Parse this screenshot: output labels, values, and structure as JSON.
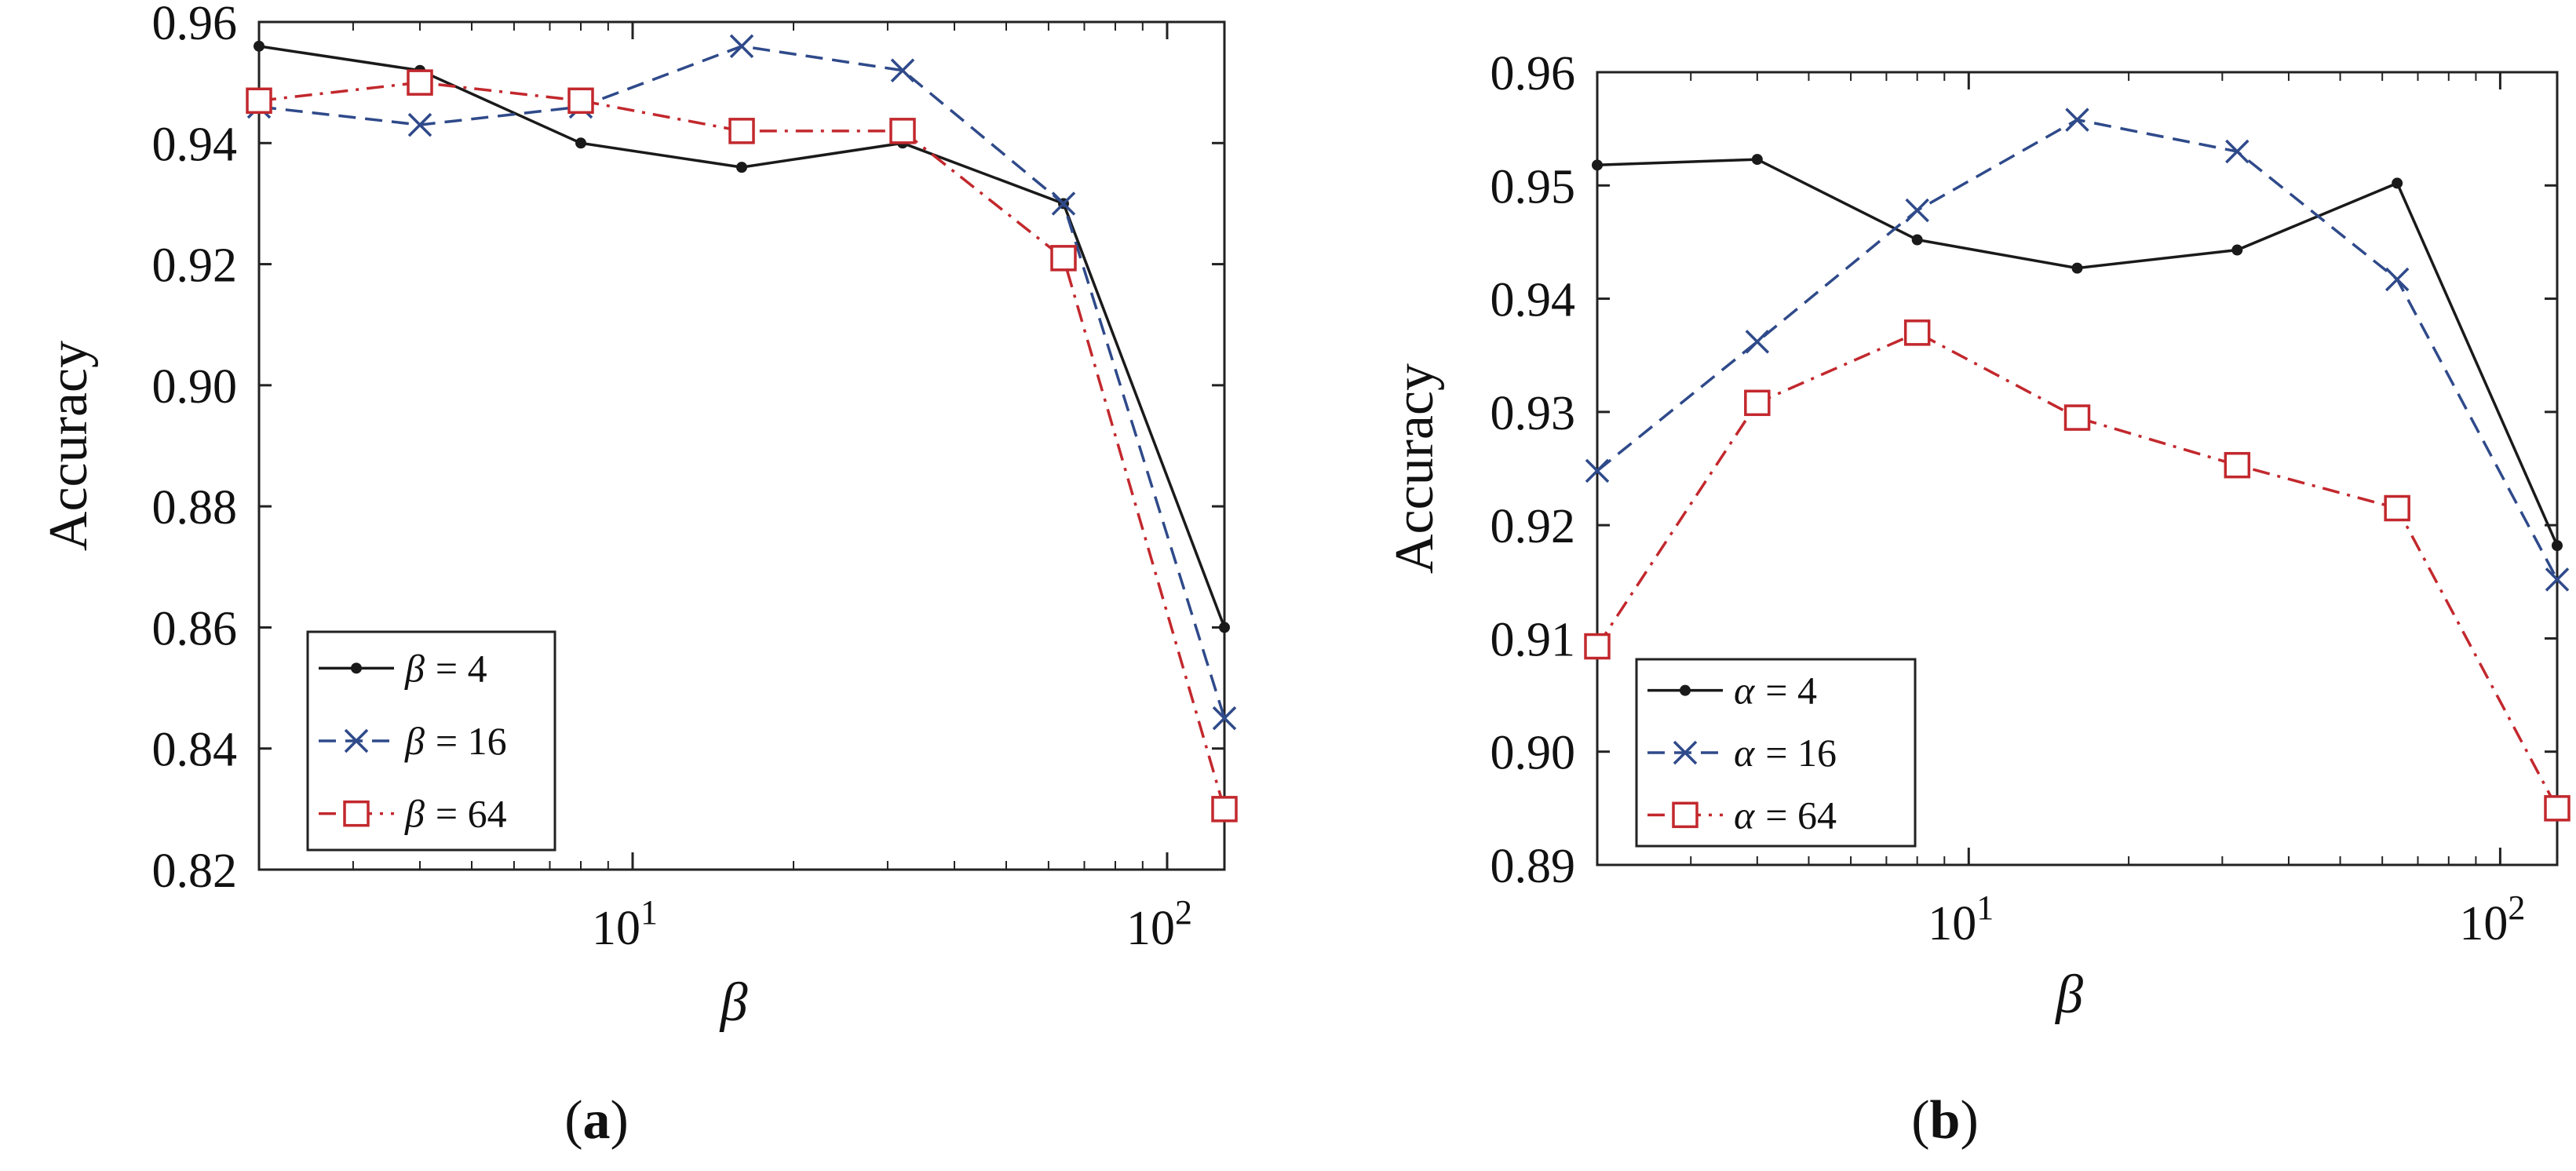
{
  "chart_data": [
    {
      "type": "line",
      "panel": "a",
      "caption_letter": "a",
      "xlabel": "β",
      "ylabel": "Accuracy",
      "xscale": "log",
      "xlim": [
        2,
        128
      ],
      "ylim": [
        0.82,
        0.96
      ],
      "yticks": [
        0.82,
        0.84,
        0.86,
        0.88,
        0.9,
        0.92,
        0.94,
        0.96
      ],
      "ytick_labels": [
        "0.82",
        "0.84",
        "0.86",
        "0.88",
        "0.90",
        "0.92",
        "0.94",
        "0.96"
      ],
      "xticks": [
        {
          "value": 10,
          "base": "10",
          "exp": "1"
        },
        {
          "value": 100,
          "base": "10",
          "exp": "2"
        }
      ],
      "x": [
        2,
        4,
        8,
        16,
        32,
        64,
        128
      ],
      "legend_position": "bottom-left",
      "series": [
        {
          "symbol": "β",
          "legend_value": "= 4",
          "color": "#1a1a1a",
          "dash": "solid",
          "marker": "dot",
          "values": [
            0.956,
            0.952,
            0.94,
            0.936,
            0.94,
            0.93,
            0.86
          ]
        },
        {
          "symbol": "β",
          "legend_value": "= 16",
          "color": "#2f4a8a",
          "dash": "dashed",
          "marker": "x",
          "values": [
            0.946,
            0.943,
            0.946,
            0.956,
            0.952,
            0.93,
            0.845
          ]
        },
        {
          "symbol": "β",
          "legend_value": "= 64",
          "color": "#c2282d",
          "dash": "dashdot",
          "marker": "square",
          "values": [
            0.947,
            0.95,
            0.947,
            0.942,
            0.942,
            0.921,
            0.83
          ]
        }
      ]
    },
    {
      "type": "line",
      "panel": "b",
      "caption_letter": "b",
      "xlabel": "β",
      "ylabel": "Accuracy",
      "xscale": "log",
      "xlim": [
        2,
        128
      ],
      "ylim": [
        0.89,
        0.96
      ],
      "yticks": [
        0.89,
        0.9,
        0.91,
        0.92,
        0.93,
        0.94,
        0.95,
        0.96
      ],
      "ytick_labels": [
        "0.89",
        "0.90",
        "0.91",
        "0.92",
        "0.93",
        "0.94",
        "0.95",
        "0.96"
      ],
      "xticks": [
        {
          "value": 10,
          "base": "10",
          "exp": "1"
        },
        {
          "value": 100,
          "base": "10",
          "exp": "2"
        }
      ],
      "x": [
        2,
        4,
        8,
        16,
        32,
        64,
        128
      ],
      "legend_position": "bottom-left",
      "series": [
        {
          "symbol": "α",
          "legend_value": "= 4",
          "color": "#1a1a1a",
          "dash": "solid",
          "marker": "dot",
          "values": [
            0.9518,
            0.9523,
            0.9452,
            0.9427,
            0.9443,
            0.9502,
            0.9182
          ]
        },
        {
          "symbol": "α",
          "legend_value": "= 16",
          "color": "#2f4a8a",
          "dash": "dashed",
          "marker": "x",
          "values": [
            0.9248,
            0.9362,
            0.9478,
            0.9558,
            0.953,
            0.9417,
            0.9152
          ]
        },
        {
          "symbol": "α",
          "legend_value": "= 64",
          "color": "#c2282d",
          "dash": "dashdot",
          "marker": "square",
          "values": [
            0.9093,
            0.9308,
            0.937,
            0.9295,
            0.9253,
            0.9215,
            0.895
          ]
        }
      ]
    }
  ]
}
